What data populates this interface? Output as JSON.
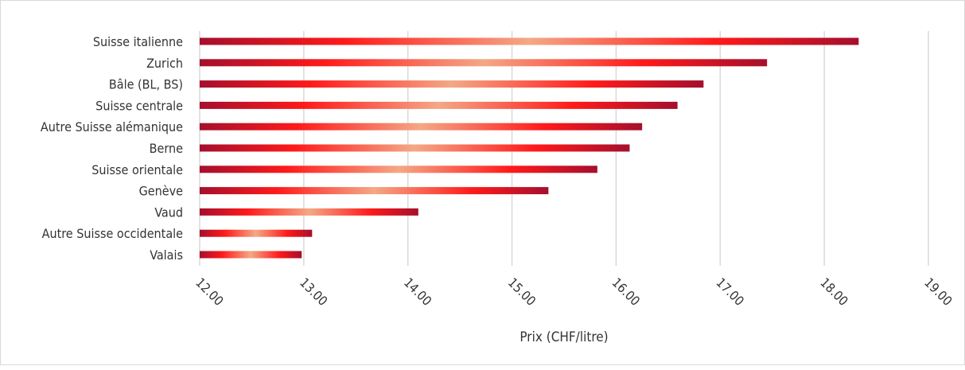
{
  "chart_data": {
    "type": "bar",
    "orientation": "horizontal",
    "categories": [
      "Suisse italienne",
      "Zurich",
      "Bâle (BL, BS)",
      "Suisse centrale",
      "Autre Suisse alémanique",
      "Berne",
      "Suisse orientale",
      "Genève",
      "Vaud",
      "Autre Suisse occidentale",
      "Valais"
    ],
    "values": [
      18.33,
      17.45,
      16.84,
      16.59,
      16.25,
      16.13,
      15.82,
      15.35,
      14.1,
      13.08,
      12.98
    ],
    "title": "",
    "xlabel": "Prix (CHF/litre)",
    "ylabel": "",
    "xlim": [
      12,
      19
    ],
    "x_ticks": [
      "12.00",
      "13.00",
      "14.00",
      "15.00",
      "16.00",
      "17.00",
      "18.00",
      "19.00"
    ],
    "grid": "vertical",
    "legend": "none",
    "colors": {
      "bar_dark": "#a50f2d",
      "bar_mid": "#ff1a1a",
      "bar_light": "#f4a886",
      "grid": "#d9d9d9",
      "text": "#333333"
    }
  }
}
